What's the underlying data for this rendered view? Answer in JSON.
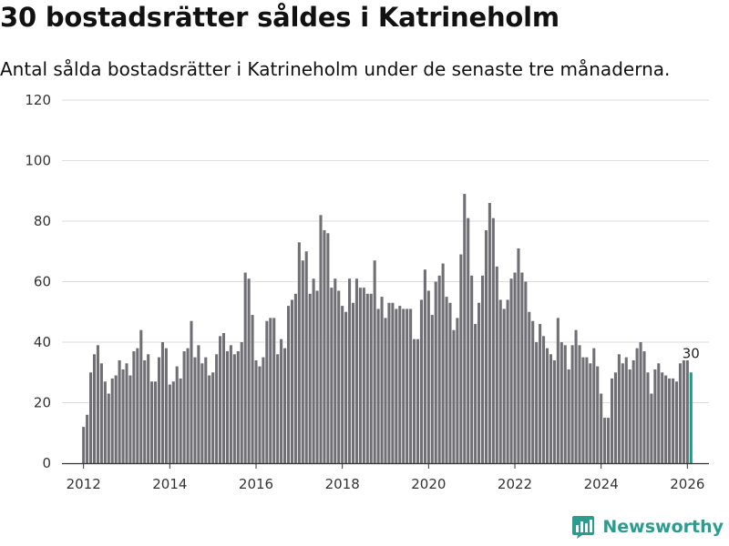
{
  "header": {
    "title": "30 bostadsrätter såldes i Katrineholm",
    "subtitle": "Antal sålda bostadsrätter i Katrineholm under de senaste tre månaderna."
  },
  "brand": {
    "name": "Newsworthy",
    "icon": "bar-chart-logo-icon"
  },
  "colors": {
    "bar": "#6f6f74",
    "highlight": "#1a9b8c",
    "grid": "#dedede",
    "axis": "#333333",
    "brand": "#2a9d8f"
  },
  "chart_data": {
    "type": "bar",
    "title": "30 bostadsrätter såldes i Katrineholm",
    "subtitle": "Antal sålda bostadsrätter i Katrineholm under de senaste tre månaderna.",
    "xlabel": "",
    "ylabel": "",
    "start": [
      2012,
      1
    ],
    "frequency": "monthly",
    "xlim": [
      2011.5,
      2026.5
    ],
    "ylim": [
      0,
      120
    ],
    "yticks": [
      0,
      20,
      40,
      60,
      80,
      100,
      120
    ],
    "xticks": [
      2012,
      2014,
      2016,
      2018,
      2020,
      2022,
      2024,
      2026
    ],
    "grid": true,
    "highlight_last": true,
    "last_label": "30",
    "values": [
      12,
      16,
      30,
      36,
      39,
      33,
      27,
      23,
      28,
      29,
      34,
      31,
      33,
      29,
      37,
      38,
      44,
      34,
      36,
      27,
      27,
      35,
      40,
      38,
      26,
      27,
      32,
      28,
      37,
      38,
      47,
      35,
      39,
      33,
      35,
      29,
      30,
      36,
      42,
      43,
      37,
      39,
      36,
      37,
      40,
      63,
      61,
      49,
      34,
      32,
      35,
      47,
      48,
      48,
      36,
      41,
      38,
      52,
      54,
      56,
      73,
      67,
      70,
      56,
      61,
      57,
      82,
      77,
      76,
      58,
      61,
      57,
      52,
      50,
      61,
      53,
      61,
      58,
      58,
      56,
      56,
      67,
      51,
      55,
      48,
      53,
      53,
      51,
      52,
      51,
      51,
      51,
      41,
      41,
      54,
      64,
      57,
      49,
      60,
      62,
      66,
      55,
      53,
      44,
      48,
      69,
      89,
      81,
      62,
      46,
      53,
      62,
      77,
      86,
      81,
      65,
      54,
      51,
      54,
      61,
      63,
      71,
      63,
      60,
      50,
      47,
      40,
      46,
      42,
      38,
      36,
      34,
      48,
      40,
      39,
      31,
      39,
      44,
      39,
      35,
      35,
      33,
      38,
      32,
      23,
      15,
      15,
      28,
      30,
      36,
      33,
      35,
      31,
      34,
      38,
      40,
      37,
      30,
      23,
      31,
      33,
      30,
      29,
      28,
      28,
      27,
      33,
      34,
      34,
      30
    ]
  }
}
